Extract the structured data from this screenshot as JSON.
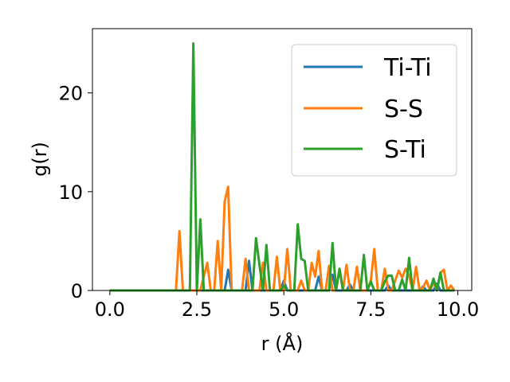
{
  "chart_data": {
    "type": "line",
    "xlabel": "r (Å)",
    "ylabel": "g(r)",
    "xlim": [
      -0.5,
      10.4
    ],
    "ylim": [
      0,
      26.5
    ],
    "xticks": [
      0.0,
      2.5,
      5.0,
      7.5,
      10.0
    ],
    "xtick_labels": [
      "0.0",
      "2.5",
      "5.0",
      "7.5",
      "10.0"
    ],
    "yticks": [
      0,
      10,
      20
    ],
    "ytick_labels": [
      "0",
      "10",
      "20"
    ],
    "grid": false,
    "legend_position": "top-right",
    "series": [
      {
        "name": "Ti-Ti",
        "color": "#1f77b4",
        "points": [
          [
            0,
            0
          ],
          [
            3.3,
            0
          ],
          [
            3.4,
            2.1
          ],
          [
            3.5,
            0
          ],
          [
            3.9,
            0
          ],
          [
            4.0,
            3.0
          ],
          [
            4.1,
            0
          ],
          [
            4.9,
            0
          ],
          [
            5.0,
            1.0
          ],
          [
            5.1,
            0
          ],
          [
            5.9,
            0
          ],
          [
            6.0,
            1.4
          ],
          [
            6.1,
            0
          ],
          [
            6.3,
            0
          ],
          [
            6.4,
            1.6
          ],
          [
            6.5,
            0
          ],
          [
            6.8,
            0
          ],
          [
            6.9,
            0.6
          ],
          [
            7.0,
            0
          ],
          [
            7.9,
            0
          ],
          [
            8.0,
            0.5
          ],
          [
            8.1,
            0
          ],
          [
            8.9,
            0
          ],
          [
            9.0,
            0.4
          ],
          [
            9.1,
            0
          ],
          [
            9.3,
            0
          ],
          [
            9.4,
            0.7
          ],
          [
            9.5,
            0
          ],
          [
            9.9,
            0
          ]
        ]
      },
      {
        "name": "S-S",
        "color": "#ff7f0e",
        "points": [
          [
            0,
            0
          ],
          [
            1.9,
            0
          ],
          [
            2.0,
            6.0
          ],
          [
            2.1,
            0
          ],
          [
            2.6,
            0
          ],
          [
            2.8,
            2.8
          ],
          [
            2.9,
            0
          ],
          [
            3.0,
            0
          ],
          [
            3.1,
            5.0
          ],
          [
            3.2,
            0
          ],
          [
            3.3,
            9.0
          ],
          [
            3.4,
            10.5
          ],
          [
            3.5,
            0
          ],
          [
            3.8,
            0
          ],
          [
            3.9,
            3.2
          ],
          [
            4.0,
            0
          ],
          [
            4.3,
            0
          ],
          [
            4.4,
            2.8
          ],
          [
            4.5,
            0
          ],
          [
            4.7,
            0
          ],
          [
            4.8,
            3.4
          ],
          [
            4.9,
            0
          ],
          [
            5.0,
            0
          ],
          [
            5.1,
            4.2
          ],
          [
            5.2,
            0
          ],
          [
            5.4,
            0
          ],
          [
            5.5,
            1.0
          ],
          [
            5.6,
            0
          ],
          [
            5.7,
            0
          ],
          [
            5.8,
            2.8
          ],
          [
            5.9,
            1.4
          ],
          [
            6.0,
            4.0
          ],
          [
            6.1,
            0
          ],
          [
            6.2,
            0
          ],
          [
            6.3,
            2.5
          ],
          [
            6.4,
            0
          ],
          [
            6.5,
            0
          ],
          [
            6.6,
            2.2
          ],
          [
            6.7,
            0
          ],
          [
            6.8,
            2.6
          ],
          [
            6.9,
            0
          ],
          [
            7.0,
            0
          ],
          [
            7.1,
            2.4
          ],
          [
            7.2,
            0
          ],
          [
            7.4,
            0
          ],
          [
            7.5,
            1.0
          ],
          [
            7.6,
            4.2
          ],
          [
            7.7,
            0
          ],
          [
            7.8,
            0
          ],
          [
            7.9,
            2.2
          ],
          [
            8.0,
            0
          ],
          [
            8.1,
            0
          ],
          [
            8.2,
            1.0
          ],
          [
            8.3,
            2.0
          ],
          [
            8.4,
            1.3
          ],
          [
            8.5,
            2.2
          ],
          [
            8.6,
            1.5
          ],
          [
            8.7,
            0
          ],
          [
            8.8,
            2.4
          ],
          [
            8.9,
            0
          ],
          [
            9.0,
            0.3
          ],
          [
            9.1,
            1.0
          ],
          [
            9.2,
            0
          ],
          [
            9.3,
            0.8
          ],
          [
            9.4,
            0
          ],
          [
            9.5,
            1.8
          ],
          [
            9.6,
            2.1
          ],
          [
            9.7,
            0
          ],
          [
            9.8,
            0.5
          ],
          [
            9.9,
            0
          ]
        ]
      },
      {
        "name": "S-Ti",
        "color": "#2ca02c",
        "points": [
          [
            0,
            0
          ],
          [
            2.3,
            0
          ],
          [
            2.4,
            25.0
          ],
          [
            2.5,
            0
          ],
          [
            2.6,
            7.2
          ],
          [
            2.7,
            0
          ],
          [
            4.1,
            0
          ],
          [
            4.2,
            5.3
          ],
          [
            4.3,
            2.6
          ],
          [
            4.4,
            0
          ],
          [
            4.5,
            4.6
          ],
          [
            4.6,
            0
          ],
          [
            4.9,
            0
          ],
          [
            5.0,
            0.5
          ],
          [
            5.1,
            0
          ],
          [
            5.3,
            0
          ],
          [
            5.4,
            6.7
          ],
          [
            5.5,
            3.2
          ],
          [
            5.6,
            3.0
          ],
          [
            5.7,
            0
          ],
          [
            6.3,
            0
          ],
          [
            6.4,
            4.8
          ],
          [
            6.5,
            0
          ],
          [
            6.6,
            2.2
          ],
          [
            6.7,
            0
          ],
          [
            7.2,
            0
          ],
          [
            7.3,
            3.6
          ],
          [
            7.4,
            0
          ],
          [
            7.5,
            0.9
          ],
          [
            7.6,
            0
          ],
          [
            7.8,
            0
          ],
          [
            7.9,
            0.9
          ],
          [
            8.0,
            1.5
          ],
          [
            8.1,
            1.5
          ],
          [
            8.2,
            0
          ],
          [
            8.3,
            0
          ],
          [
            8.4,
            1.1
          ],
          [
            8.5,
            0
          ],
          [
            8.6,
            3.3
          ],
          [
            8.7,
            0
          ],
          [
            9.2,
            0
          ],
          [
            9.3,
            1.2
          ],
          [
            9.4,
            0
          ],
          [
            9.5,
            1.8
          ],
          [
            9.6,
            0
          ],
          [
            9.9,
            0
          ]
        ]
      }
    ]
  }
}
